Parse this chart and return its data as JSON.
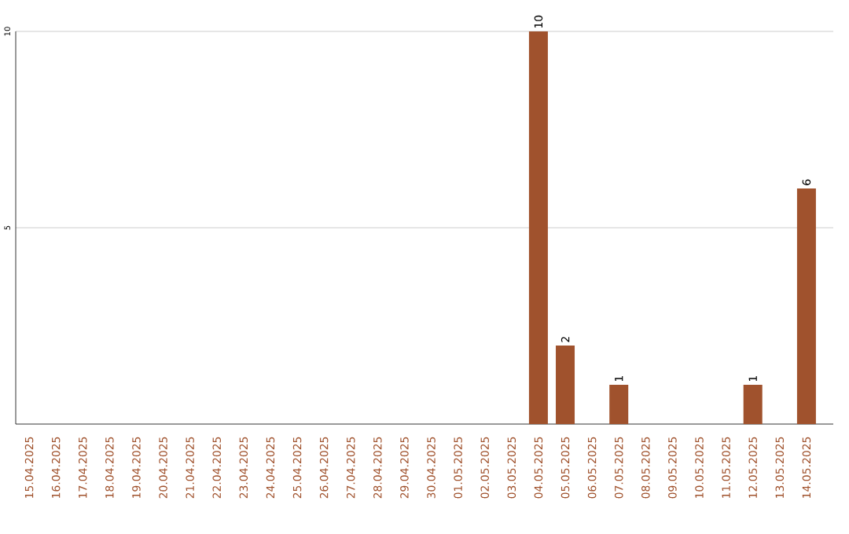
{
  "chart_data": {
    "type": "bar",
    "categories": [
      "15.04.2025",
      "16.04.2025",
      "17.04.2025",
      "18.04.2025",
      "19.04.2025",
      "20.04.2025",
      "21.04.2025",
      "22.04.2025",
      "23.04.2025",
      "24.04.2025",
      "25.04.2025",
      "26.04.2025",
      "27.04.2025",
      "28.04.2025",
      "29.04.2025",
      "30.04.2025",
      "01.05.2025",
      "02.05.2025",
      "03.05.2025",
      "04.05.2025",
      "05.05.2025",
      "06.05.2025",
      "07.05.2025",
      "08.05.2025",
      "09.05.2025",
      "10.05.2025",
      "11.05.2025",
      "12.05.2025",
      "13.05.2025",
      "14.05.2025"
    ],
    "values": [
      0,
      0,
      0,
      0,
      0,
      0,
      0,
      0,
      0,
      0,
      0,
      0,
      0,
      0,
      0,
      0,
      0,
      0,
      0,
      10,
      2,
      0,
      1,
      0,
      0,
      0,
      0,
      1,
      0,
      6
    ],
    "value_labels": [
      null,
      null,
      null,
      null,
      null,
      null,
      null,
      null,
      null,
      null,
      null,
      null,
      null,
      null,
      null,
      null,
      null,
      null,
      null,
      "10",
      "2",
      null,
      "1",
      null,
      null,
      null,
      null,
      "1",
      null,
      "6"
    ],
    "color": "#a0522d",
    "ylim": [
      0,
      10
    ],
    "yticks": [
      5,
      10
    ],
    "grid": "y"
  }
}
